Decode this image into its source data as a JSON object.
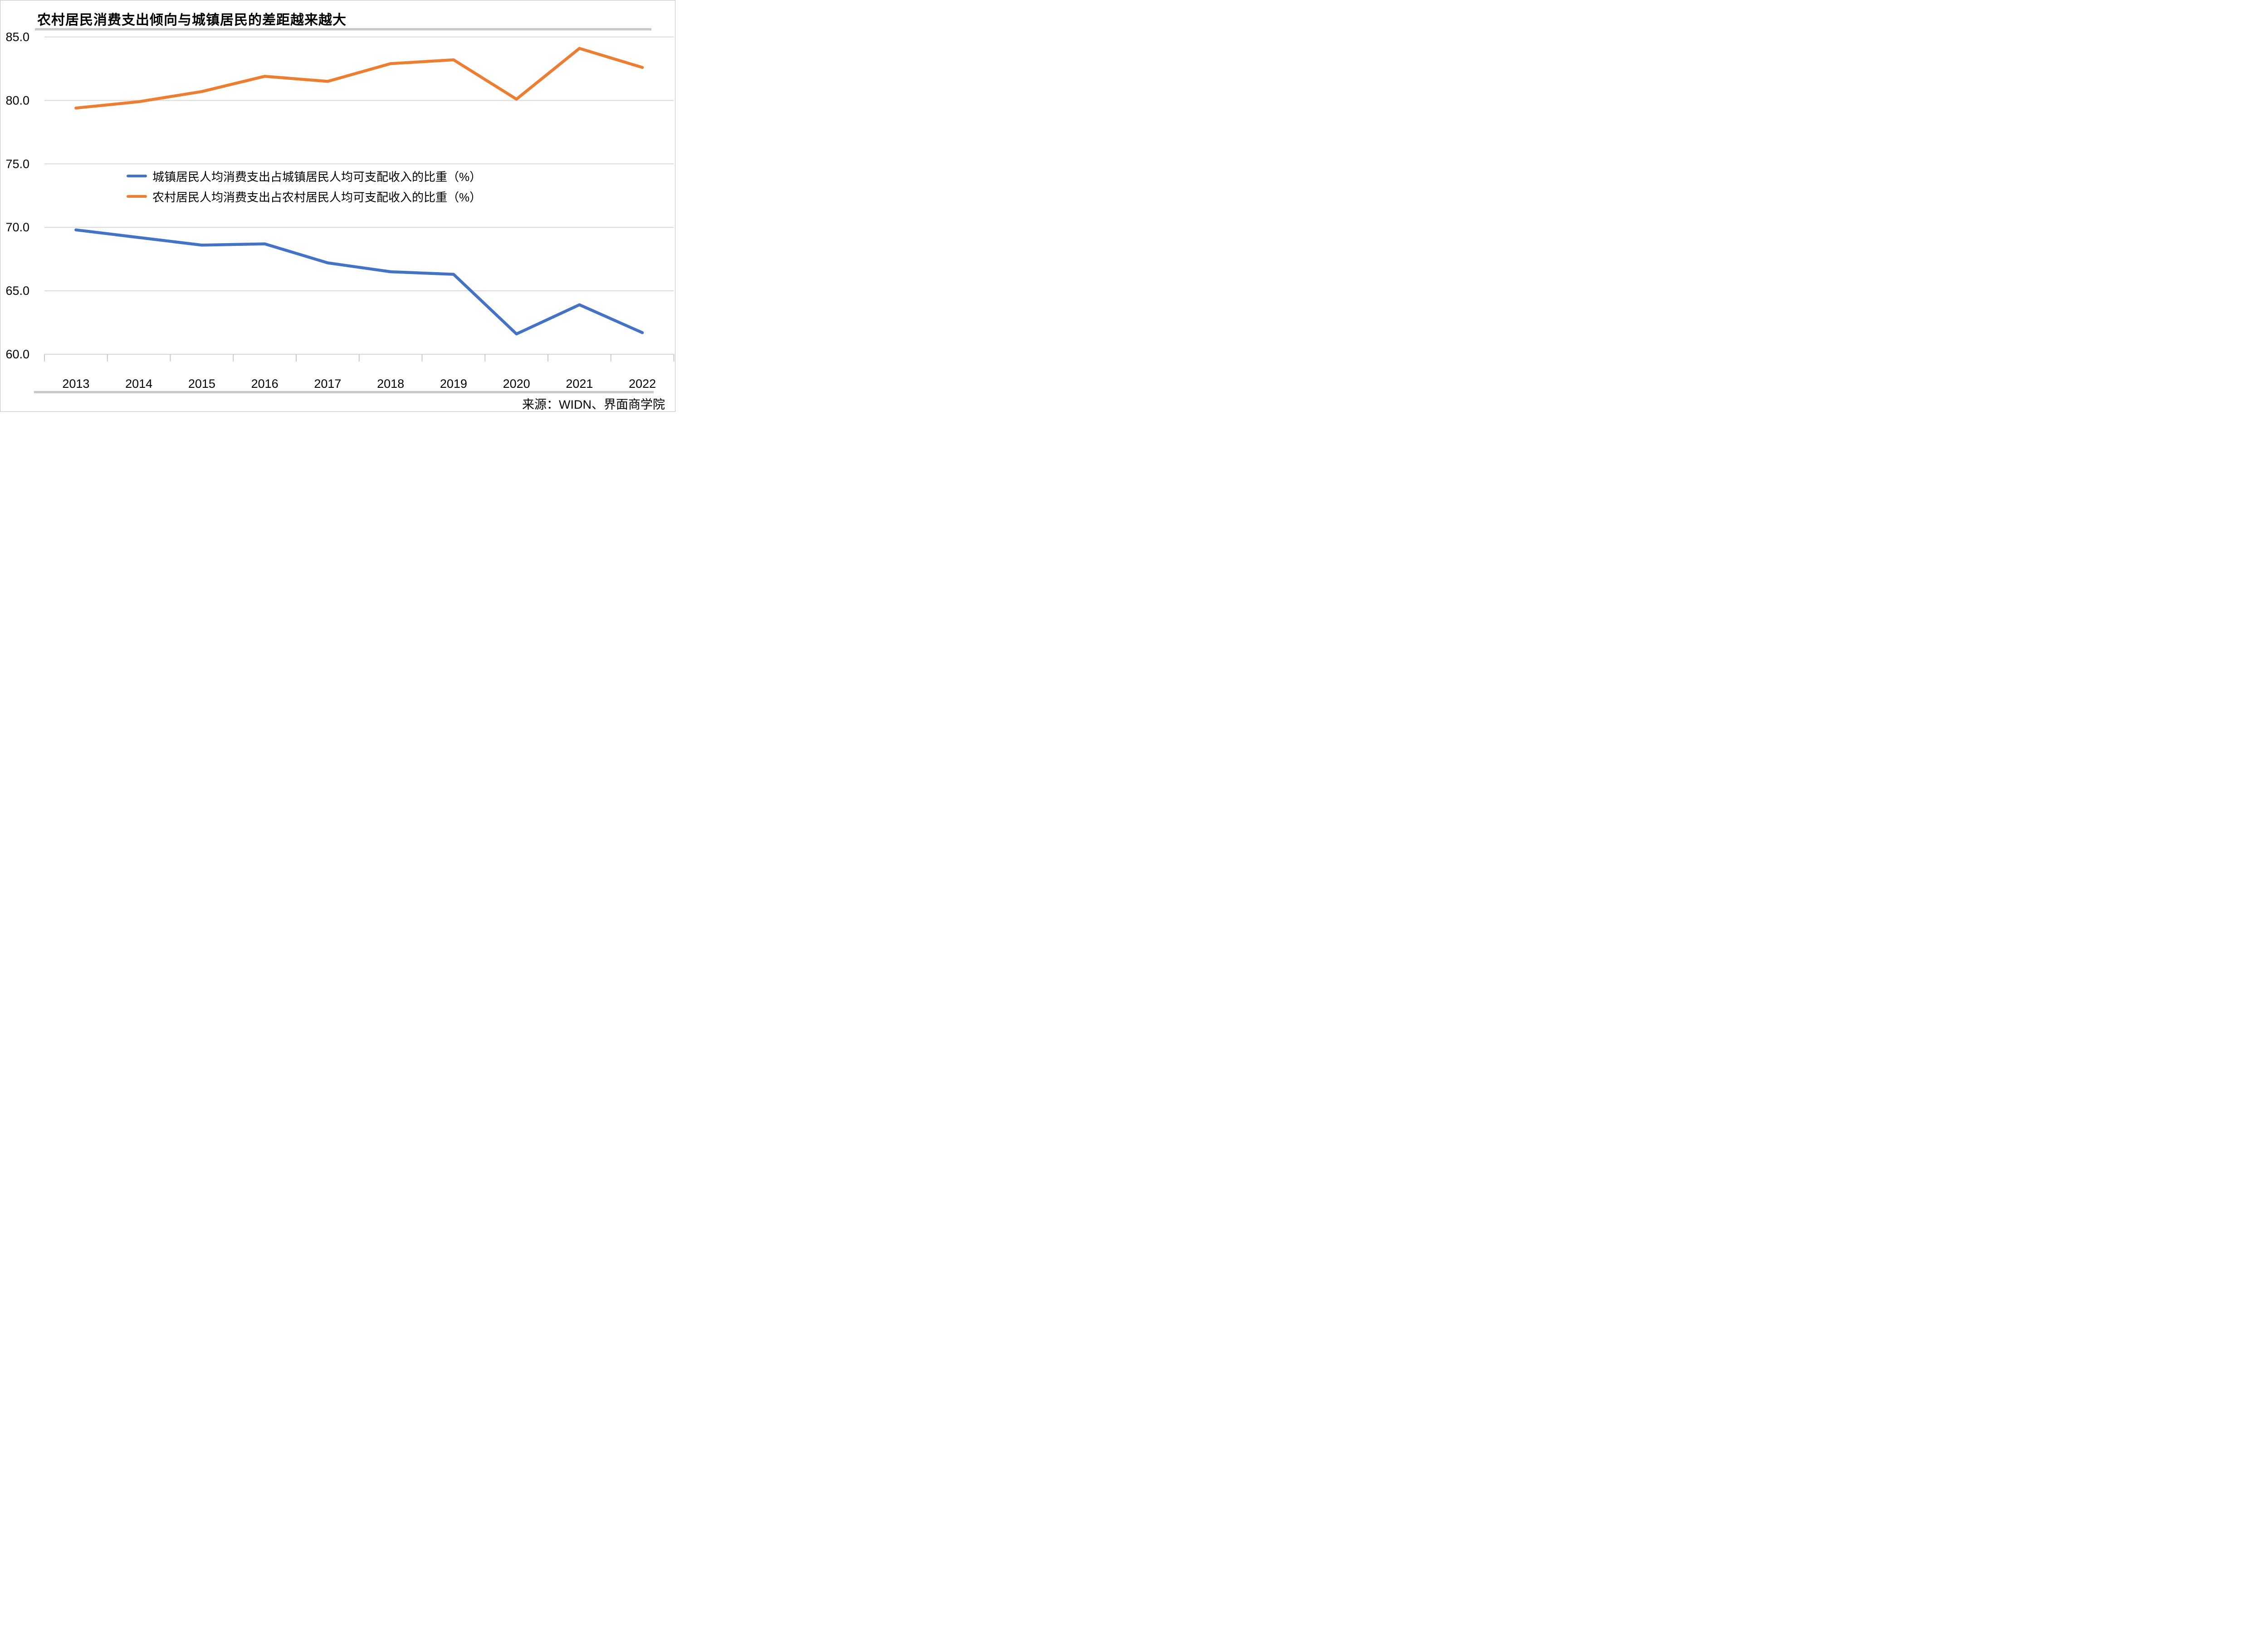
{
  "title": "农村居民消费支出倾向与城镇居民的差距越来越大",
  "source": "来源：WIDN、界面商学院",
  "colors": {
    "urban_line": "#4472C4",
    "rural_line": "#ED7D31",
    "gridline": "#D9D9D9",
    "divider_bar": "#C9C9C9",
    "axis_tick": "#C9C9C9",
    "text": "#000000"
  },
  "chart_data": {
    "type": "line",
    "title": "农村居民消费支出倾向与城镇居民的差距越来越大",
    "categories": [
      "2013",
      "2014",
      "2015",
      "2016",
      "2017",
      "2018",
      "2019",
      "2020",
      "2021",
      "2022"
    ],
    "series": [
      {
        "name": "城镇居民人均消费支出占城镇居民人均可支配收入的比重（%）",
        "color": "#4472C4",
        "values": [
          69.8,
          69.2,
          68.6,
          68.7,
          67.2,
          66.5,
          66.3,
          61.6,
          63.9,
          61.7
        ]
      },
      {
        "name": "农村居民人均消费支出占农村居民人均可支配收入的比重（%）",
        "color": "#ED7D31",
        "values": [
          79.4,
          79.9,
          80.7,
          81.9,
          81.5,
          82.9,
          83.2,
          80.1,
          84.1,
          82.6
        ]
      }
    ],
    "xlabel": "",
    "ylabel": "",
    "ylim": [
      60,
      85
    ],
    "y_ticks": [
      {
        "value": 85,
        "label": "85.0"
      },
      {
        "value": 80,
        "label": "80.0"
      },
      {
        "value": 75,
        "label": "75.0"
      },
      {
        "value": 70,
        "label": "70.0"
      },
      {
        "value": 65,
        "label": "65.0"
      },
      {
        "value": 60,
        "label": "60.0"
      }
    ],
    "grid": "horizontal",
    "legend_position": "inside-left"
  }
}
